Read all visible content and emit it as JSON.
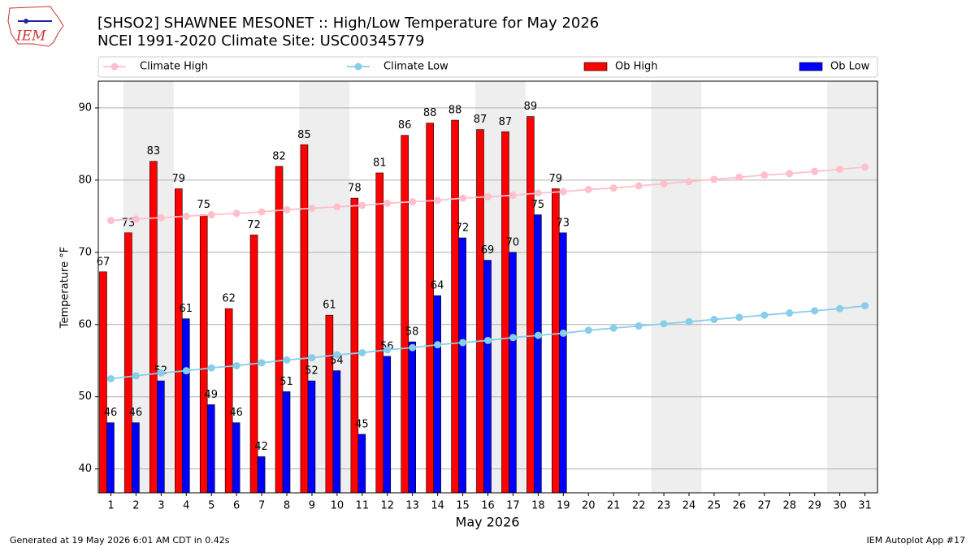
{
  "chart_data": {
    "type": "bar",
    "title": "[SHSO2] SHAWNEE MESONET :: High/Low Temperature for May 2026",
    "subtitle": "NCEI 1991-2020 Climate Site: USC00345779",
    "logo_text": "IEM",
    "xlabel": "May 2026",
    "ylabel": "Temperature °F",
    "footer_left": "Generated at 19 May 2026 6:01 AM CDT in 0.42s",
    "footer_right": "IEM Autoplot App #17",
    "categories": [
      "1",
      "2",
      "3",
      "4",
      "5",
      "6",
      "7",
      "8",
      "9",
      "10",
      "11",
      "12",
      "13",
      "14",
      "15",
      "16",
      "17",
      "18",
      "19",
      "20",
      "21",
      "22",
      "23",
      "24",
      "25",
      "26",
      "27",
      "28",
      "29",
      "30",
      "31"
    ],
    "shaded_days": [
      [
        2,
        3
      ],
      [
        9,
        10
      ],
      [
        16,
        17
      ],
      [
        23,
        24
      ],
      [
        30,
        31
      ]
    ],
    "ylim": [
      36.7,
      93.7
    ],
    "yticks": [
      40,
      50,
      60,
      70,
      80,
      90
    ],
    "grid": true,
    "series": [
      {
        "name": "Climate High",
        "color": "#ffc0cb",
        "kind": "line",
        "values": [
          74.4,
          74.6,
          74.8,
          75.0,
          75.2,
          75.4,
          75.6,
          75.9,
          76.1,
          76.3,
          76.5,
          76.8,
          77.0,
          77.2,
          77.5,
          77.7,
          77.9,
          78.2,
          78.4,
          78.7,
          78.9,
          79.2,
          79.5,
          79.8,
          80.1,
          80.4,
          80.7,
          80.9,
          81.2,
          81.5,
          81.8
        ]
      },
      {
        "name": "Climate Low",
        "color": "#87ceeb",
        "kind": "line",
        "values": [
          52.5,
          52.9,
          53.3,
          53.6,
          54.0,
          54.3,
          54.7,
          55.1,
          55.4,
          55.8,
          56.1,
          56.5,
          56.8,
          57.2,
          57.5,
          57.8,
          58.2,
          58.5,
          58.8,
          59.2,
          59.5,
          59.8,
          60.1,
          60.4,
          60.7,
          61.0,
          61.3,
          61.6,
          61.9,
          62.2,
          62.6
        ]
      },
      {
        "name": "Ob High",
        "color": "#ff0000",
        "kind": "bar",
        "values": [
          67.3,
          72.7,
          82.6,
          78.8,
          75.2,
          62.2,
          72.4,
          81.9,
          84.9,
          61.3,
          77.5,
          81.0,
          86.2,
          87.9,
          88.3,
          87.0,
          86.7,
          88.8,
          78.8,
          null,
          null,
          null,
          null,
          null,
          null,
          null,
          null,
          null,
          null,
          null,
          null
        ],
        "value_labels": [
          "67",
          "73",
          "83",
          "79",
          "75",
          "62",
          "72",
          "82",
          "85",
          "61",
          "78",
          "81",
          "86",
          "88",
          "88",
          "87",
          "87",
          "89",
          "79",
          null,
          null,
          null,
          null,
          null,
          null,
          null,
          null,
          null,
          null,
          null,
          null
        ]
      },
      {
        "name": "Ob Low",
        "color": "#0000ff",
        "kind": "bar",
        "values": [
          46.4,
          46.4,
          52.2,
          60.8,
          48.9,
          46.4,
          41.7,
          50.7,
          52.2,
          53.6,
          44.8,
          55.6,
          57.6,
          64.0,
          72.0,
          68.9,
          70.0,
          75.2,
          72.7,
          null,
          null,
          null,
          null,
          null,
          null,
          null,
          null,
          null,
          null,
          null,
          null
        ],
        "value_labels": [
          "46",
          "46",
          "52",
          "61",
          "49",
          "46",
          "42",
          "51",
          "52",
          "54",
          "45",
          "56",
          "58",
          "64",
          "72",
          "69",
          "70",
          "75",
          "73",
          null,
          null,
          null,
          null,
          null,
          null,
          null,
          null,
          null,
          null,
          null,
          null
        ]
      }
    ]
  }
}
